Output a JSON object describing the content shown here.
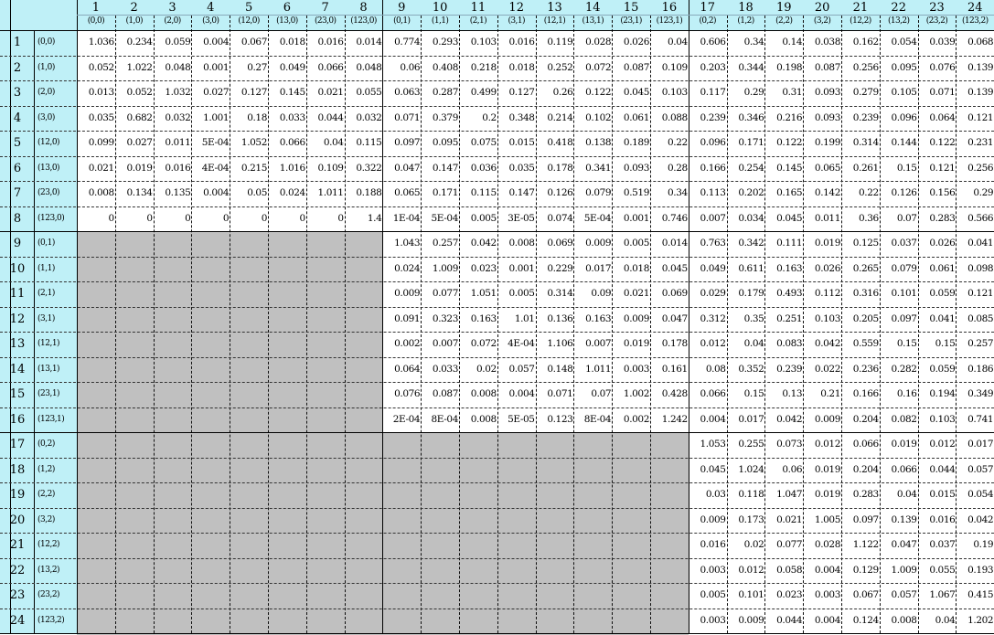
{
  "columns": [
    {
      "num": "1",
      "code": "(0,0)"
    },
    {
      "num": "2",
      "code": "(1,0)"
    },
    {
      "num": "3",
      "code": "(2,0)"
    },
    {
      "num": "4",
      "code": "(3,0)"
    },
    {
      "num": "5",
      "code": "(12,0)"
    },
    {
      "num": "6",
      "code": "(13,0)"
    },
    {
      "num": "7",
      "code": "(23,0)"
    },
    {
      "num": "8",
      "code": "(123,0)"
    },
    {
      "num": "9",
      "code": "(0,1)"
    },
    {
      "num": "10",
      "code": "(1,1)"
    },
    {
      "num": "11",
      "code": "(2,1)"
    },
    {
      "num": "12",
      "code": "(3,1)"
    },
    {
      "num": "13",
      "code": "(12,1)"
    },
    {
      "num": "14",
      "code": "(13,1)"
    },
    {
      "num": "15",
      "code": "(23,1)"
    },
    {
      "num": "16",
      "code": "(123,1)"
    },
    {
      "num": "17",
      "code": "(0,2)"
    },
    {
      "num": "18",
      "code": "(1,2)"
    },
    {
      "num": "19",
      "code": "(2,2)"
    },
    {
      "num": "20",
      "code": "(3,2)"
    },
    {
      "num": "21",
      "code": "(12,2)"
    },
    {
      "num": "22",
      "code": "(13,2)"
    },
    {
      "num": "23",
      "code": "(23,2)"
    },
    {
      "num": "24",
      "code": "(123,2)"
    }
  ],
  "rows": [
    {
      "num": "1",
      "code": "(0,0)",
      "values": [
        "1.036",
        "0.234",
        "0.059",
        "0.004",
        "0.067",
        "0.018",
        "0.016",
        "0.014",
        "0.774",
        "0.293",
        "0.103",
        "0.016",
        "0.119",
        "0.028",
        "0.026",
        "0.04",
        "0.606",
        "0.34",
        "0.14",
        "0.038",
        "0.162",
        "0.054",
        "0.039",
        "0.068"
      ]
    },
    {
      "num": "2",
      "code": "(1,0)",
      "values": [
        "0.052",
        "1.022",
        "0.048",
        "0.001",
        "0.27",
        "0.049",
        "0.066",
        "0.048",
        "0.06",
        "0.408",
        "0.218",
        "0.018",
        "0.252",
        "0.072",
        "0.087",
        "0.109",
        "0.203",
        "0.344",
        "0.198",
        "0.087",
        "0.256",
        "0.095",
        "0.076",
        "0.139"
      ]
    },
    {
      "num": "3",
      "code": "(2,0)",
      "values": [
        "0.013",
        "0.052",
        "1.032",
        "0.027",
        "0.127",
        "0.145",
        "0.021",
        "0.055",
        "0.063",
        "0.287",
        "0.499",
        "0.127",
        "0.26",
        "0.122",
        "0.045",
        "0.103",
        "0.117",
        "0.29",
        "0.31",
        "0.093",
        "0.279",
        "0.105",
        "0.071",
        "0.139"
      ]
    },
    {
      "num": "4",
      "code": "(3,0)",
      "values": [
        "0.035",
        "0.682",
        "0.032",
        "1.001",
        "0.18",
        "0.033",
        "0.044",
        "0.032",
        "0.071",
        "0.379",
        "0.2",
        "0.348",
        "0.214",
        "0.102",
        "0.061",
        "0.088",
        "0.239",
        "0.346",
        "0.216",
        "0.093",
        "0.239",
        "0.096",
        "0.064",
        "0.121"
      ]
    },
    {
      "num": "5",
      "code": "(12,0)",
      "values": [
        "0.099",
        "0.027",
        "0.011",
        "5E-04",
        "1.052",
        "0.066",
        "0.04",
        "0.115",
        "0.097",
        "0.095",
        "0.075",
        "0.015",
        "0.418",
        "0.138",
        "0.189",
        "0.22",
        "0.096",
        "0.171",
        "0.122",
        "0.199",
        "0.314",
        "0.144",
        "0.122",
        "0.231"
      ]
    },
    {
      "num": "6",
      "code": "(13,0)",
      "values": [
        "0.021",
        "0.019",
        "0.016",
        "4E-04",
        "0.215",
        "1.016",
        "0.109",
        "0.322",
        "0.047",
        "0.147",
        "0.036",
        "0.035",
        "0.178",
        "0.341",
        "0.093",
        "0.28",
        "0.166",
        "0.254",
        "0.145",
        "0.065",
        "0.261",
        "0.15",
        "0.121",
        "0.256"
      ]
    },
    {
      "num": "7",
      "code": "(23,0)",
      "values": [
        "0.008",
        "0.134",
        "0.135",
        "0.004",
        "0.05",
        "0.024",
        "1.011",
        "0.188",
        "0.065",
        "0.171",
        "0.115",
        "0.147",
        "0.126",
        "0.079",
        "0.519",
        "0.34",
        "0.113",
        "0.202",
        "0.165",
        "0.142",
        "0.22",
        "0.126",
        "0.156",
        "0.29"
      ]
    },
    {
      "num": "8",
      "code": "(123,0)",
      "values": [
        "0",
        "0",
        "0",
        "0",
        "0",
        "0",
        "0",
        "1.4",
        "1E-04",
        "5E-04",
        "0.005",
        "3E-05",
        "0.074",
        "5E-04",
        "0.001",
        "0.746",
        "0.007",
        "0.034",
        "0.045",
        "0.011",
        "0.36",
        "0.07",
        "0.283",
        "0.566"
      ]
    },
    {
      "num": "9",
      "code": "(0,1)",
      "values": [
        "",
        "",
        "",
        "",
        "",
        "",
        "",
        "",
        "1.043",
        "0.257",
        "0.042",
        "0.008",
        "0.069",
        "0.009",
        "0.005",
        "0.014",
        "0.763",
        "0.342",
        "0.111",
        "0.019",
        "0.125",
        "0.037",
        "0.026",
        "0.041"
      ]
    },
    {
      "num": "10",
      "code": "(1,1)",
      "values": [
        "",
        "",
        "",
        "",
        "",
        "",
        "",
        "",
        "0.024",
        "1.009",
        "0.023",
        "0.001",
        "0.229",
        "0.017",
        "0.018",
        "0.045",
        "0.049",
        "0.611",
        "0.163",
        "0.026",
        "0.265",
        "0.079",
        "0.061",
        "0.098"
      ]
    },
    {
      "num": "11",
      "code": "(2,1)",
      "values": [
        "",
        "",
        "",
        "",
        "",
        "",
        "",
        "",
        "0.009",
        "0.077",
        "1.051",
        "0.005",
        "0.314",
        "0.09",
        "0.021",
        "0.069",
        "0.029",
        "0.179",
        "0.493",
        "0.112",
        "0.316",
        "0.101",
        "0.059",
        "0.121"
      ]
    },
    {
      "num": "12",
      "code": "(3,1)",
      "values": [
        "",
        "",
        "",
        "",
        "",
        "",
        "",
        "",
        "0.091",
        "0.323",
        "0.163",
        "1.01",
        "0.136",
        "0.163",
        "0.009",
        "0.047",
        "0.312",
        "0.35",
        "0.251",
        "0.103",
        "0.205",
        "0.097",
        "0.041",
        "0.085"
      ]
    },
    {
      "num": "13",
      "code": "(12,1)",
      "values": [
        "",
        "",
        "",
        "",
        "",
        "",
        "",
        "",
        "0.002",
        "0.007",
        "0.072",
        "4E-04",
        "1.106",
        "0.007",
        "0.019",
        "0.178",
        "0.012",
        "0.04",
        "0.083",
        "0.042",
        "0.559",
        "0.15",
        "0.15",
        "0.257"
      ]
    },
    {
      "num": "14",
      "code": "(13,1)",
      "values": [
        "",
        "",
        "",
        "",
        "",
        "",
        "",
        "",
        "0.064",
        "0.033",
        "0.02",
        "0.057",
        "0.148",
        "1.011",
        "0.003",
        "0.161",
        "0.08",
        "0.352",
        "0.239",
        "0.022",
        "0.236",
        "0.282",
        "0.059",
        "0.186"
      ]
    },
    {
      "num": "15",
      "code": "(23,1)",
      "values": [
        "",
        "",
        "",
        "",
        "",
        "",
        "",
        "",
        "0.076",
        "0.087",
        "0.008",
        "0.004",
        "0.071",
        "0.07",
        "1.002",
        "0.428",
        "0.066",
        "0.15",
        "0.13",
        "0.21",
        "0.166",
        "0.16",
        "0.194",
        "0.349"
      ]
    },
    {
      "num": "16",
      "code": "(123,1)",
      "values": [
        "",
        "",
        "",
        "",
        "",
        "",
        "",
        "",
        "2E-04",
        "8E-04",
        "0.008",
        "5E-05",
        "0.123",
        "8E-04",
        "0.002",
        "1.242",
        "0.004",
        "0.017",
        "0.042",
        "0.009",
        "0.204",
        "0.082",
        "0.103",
        "0.741"
      ]
    },
    {
      "num": "17",
      "code": "(0,2)",
      "values": [
        "",
        "",
        "",
        "",
        "",
        "",
        "",
        "",
        "",
        "",
        "",
        "",
        "",
        "",
        "",
        "",
        "1.053",
        "0.255",
        "0.073",
        "0.012",
        "0.066",
        "0.019",
        "0.012",
        "0.017"
      ]
    },
    {
      "num": "18",
      "code": "(1,2)",
      "values": [
        "",
        "",
        "",
        "",
        "",
        "",
        "",
        "",
        "",
        "",
        "",
        "",
        "",
        "",
        "",
        "",
        "0.045",
        "1.024",
        "0.06",
        "0.019",
        "0.204",
        "0.066",
        "0.044",
        "0.057"
      ]
    },
    {
      "num": "19",
      "code": "(2,2)",
      "values": [
        "",
        "",
        "",
        "",
        "",
        "",
        "",
        "",
        "",
        "",
        "",
        "",
        "",
        "",
        "",
        "",
        "0.03",
        "0.118",
        "1.047",
        "0.019",
        "0.283",
        "0.04",
        "0.015",
        "0.054"
      ]
    },
    {
      "num": "20",
      "code": "(3,2)",
      "values": [
        "",
        "",
        "",
        "",
        "",
        "",
        "",
        "",
        "",
        "",
        "",
        "",
        "",
        "",
        "",
        "",
        "0.009",
        "0.173",
        "0.021",
        "1.005",
        "0.097",
        "0.139",
        "0.016",
        "0.042"
      ]
    },
    {
      "num": "21",
      "code": "(12,2)",
      "values": [
        "",
        "",
        "",
        "",
        "",
        "",
        "",
        "",
        "",
        "",
        "",
        "",
        "",
        "",
        "",
        "",
        "0.016",
        "0.02",
        "0.077",
        "0.028",
        "1.122",
        "0.047",
        "0.037",
        "0.19"
      ]
    },
    {
      "num": "22",
      "code": "(13,2)",
      "values": [
        "",
        "",
        "",
        "",
        "",
        "",
        "",
        "",
        "",
        "",
        "",
        "",
        "",
        "",
        "",
        "",
        "0.003",
        "0.012",
        "0.058",
        "0.004",
        "0.129",
        "1.009",
        "0.055",
        "0.193"
      ]
    },
    {
      "num": "23",
      "code": "(23,2)",
      "values": [
        "",
        "",
        "",
        "",
        "",
        "",
        "",
        "",
        "",
        "",
        "",
        "",
        "",
        "",
        "",
        "",
        "0.005",
        "0.101",
        "0.023",
        "0.003",
        "0.067",
        "0.057",
        "1.067",
        "0.415"
      ]
    },
    {
      "num": "24",
      "code": "(123,2)",
      "values": [
        "",
        "",
        "",
        "",
        "",
        "",
        "",
        "",
        "",
        "",
        "",
        "",
        "",
        "",
        "",
        "",
        "0.003",
        "0.009",
        "0.044",
        "0.004",
        "0.124",
        "0.008",
        "0.04",
        "1.202"
      ]
    }
  ],
  "colors": {
    "header_bg": "#bff0f7",
    "shaded_bg": "#c0c0c0",
    "cell_bg": "#ffffff"
  }
}
